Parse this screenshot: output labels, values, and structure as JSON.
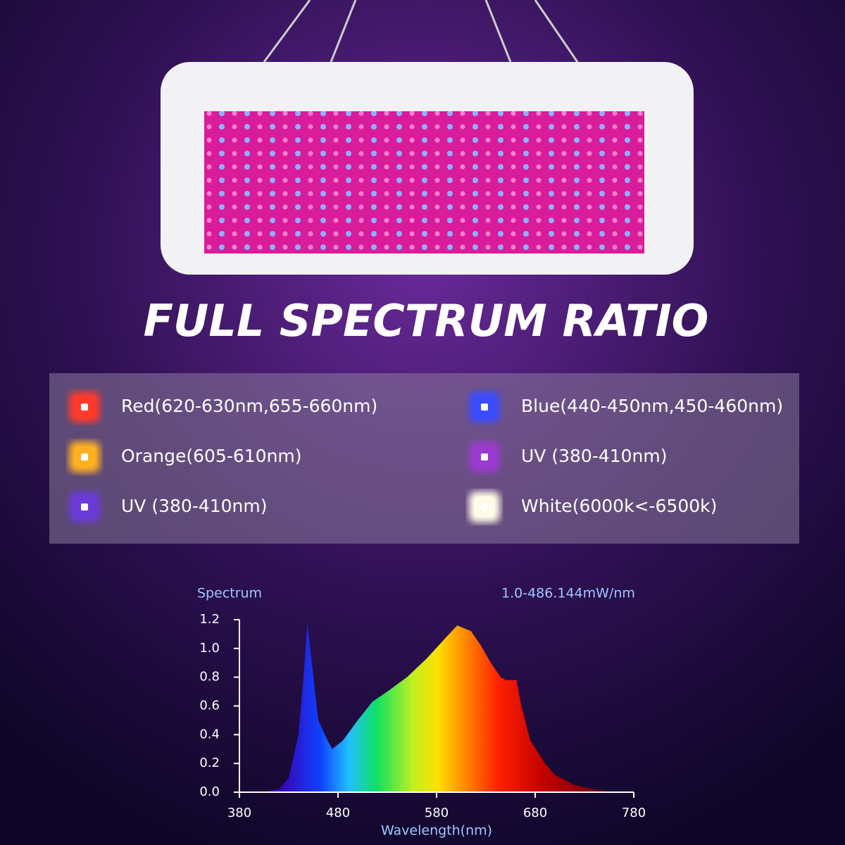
{
  "title": "FULL SPECTRUM RATIO",
  "legend": {
    "items": [
      {
        "label": "Red(620-630nm,655-660nm)",
        "color": "#ff3a2a"
      },
      {
        "label": "Blue(440-450nm,450-460nm)",
        "color": "#3a4cff"
      },
      {
        "label": "Orange(605-610nm)",
        "color": "#ffb020"
      },
      {
        "label": "UV (380-410nm)",
        "color": "#9a3ad0"
      },
      {
        "label": "UV (380-410nm)",
        "color": "#6a3ad8"
      },
      {
        "label": "White(6000k<-6500k)",
        "color": "#fffbe8"
      }
    ]
  },
  "chart_data": {
    "type": "area",
    "title": "Spectrum",
    "subtitle": "1.0-486.144mW/nm",
    "x_label": "Wavelength(nm)",
    "x": [
      400,
      420,
      430,
      440,
      445,
      449,
      455,
      460,
      468,
      474,
      485,
      500,
      515,
      530,
      550,
      570,
      590,
      601,
      615,
      625,
      635,
      645,
      650,
      661,
      666,
      675,
      690,
      700,
      720,
      740,
      760
    ],
    "values": [
      0,
      0.02,
      0.1,
      0.4,
      0.8,
      1.17,
      0.8,
      0.5,
      0.38,
      0.3,
      0.36,
      0.5,
      0.63,
      0.7,
      0.8,
      0.93,
      1.08,
      1.16,
      1.12,
      1.02,
      0.9,
      0.8,
      0.78,
      0.78,
      0.6,
      0.36,
      0.2,
      0.12,
      0.05,
      0.02,
      0
    ],
    "xlim": [
      380,
      780
    ],
    "ylim": [
      0,
      1.2
    ],
    "xticks": [
      380,
      480,
      580,
      680,
      780
    ],
    "yticks": [
      {
        "value": 0,
        "label": "0.0"
      },
      0.2,
      0.4,
      0.6,
      0.8,
      {
        "value": 1,
        "label": "1.0"
      },
      1.2
    ]
  }
}
